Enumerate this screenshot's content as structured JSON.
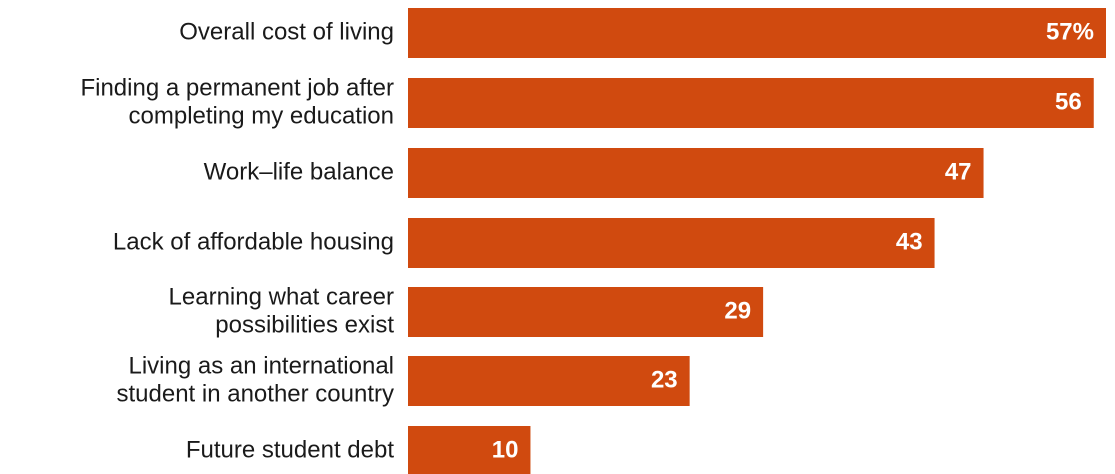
{
  "chart_data": {
    "type": "bar",
    "orientation": "horizontal",
    "categories": [
      [
        "Overall cost of living"
      ],
      [
        "Finding a permanent job after",
        "completing my education"
      ],
      [
        "Work–life balance"
      ],
      [
        "Lack of affordable housing"
      ],
      [
        "Learning what career",
        "possibilities exist"
      ],
      [
        "Living as an international",
        "student in another country"
      ],
      [
        "Future student debt"
      ]
    ],
    "values": [
      57,
      56,
      47,
      43,
      29,
      23,
      10
    ],
    "value_labels": [
      "57%",
      "56",
      "47",
      "43",
      "29",
      "23",
      "10"
    ],
    "bar_color": "#d04a0f",
    "grid": false,
    "legend": "none"
  }
}
